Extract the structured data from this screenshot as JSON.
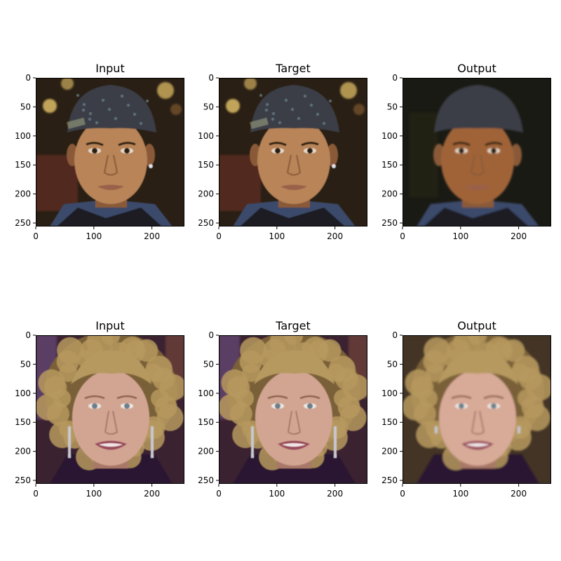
{
  "figure": {
    "rows": [
      {
        "panels": [
          {
            "title": "Input",
            "variant": "input"
          },
          {
            "title": "Target",
            "variant": "target"
          },
          {
            "title": "Output",
            "variant": "output"
          }
        ],
        "subject": "young-man-bandana",
        "palette": {
          "background": "#2a1f14",
          "bg_warm": "#6a4a2a",
          "bg_light_spot": "#e7c56a",
          "brick": "#5a2a1e",
          "skin": "#b88459",
          "skin_shadow": "#8a5a38",
          "bandana": "#3a3d46",
          "bandana_pattern": "#6a7f8a",
          "shirt": "#3b4a6a",
          "eye": "#2a1a10",
          "lip": "#9a6049",
          "output_skin": "#a06438",
          "output_bg": "#1a1a14"
        }
      },
      {
        "panels": [
          {
            "title": "Input",
            "variant": "input"
          },
          {
            "title": "Target",
            "variant": "target"
          },
          {
            "title": "Output",
            "variant": "output"
          }
        ],
        "subject": "older-woman-curly-hair",
        "palette": {
          "background": "#3b2230",
          "bg_side": "#6a4a7a",
          "hair": "#b6995e",
          "hair_dark": "#7a6038",
          "skin": "#d2a592",
          "skin_shadow": "#a97868",
          "eye": "#6a7f8a",
          "lip": "#9a4a5a",
          "earring": "#c8c8d0",
          "clothing": "#2a1830",
          "output_skin": "#d8aa98",
          "output_bg": "#3a3020"
        }
      }
    ],
    "axes": {
      "x_ticks": [
        "0",
        "100",
        "200"
      ],
      "y_ticks": [
        "0",
        "50",
        "100",
        "150",
        "200",
        "250"
      ],
      "x_tick_values": [
        0,
        100,
        200
      ],
      "y_tick_values": [
        0,
        50,
        100,
        150,
        200,
        250
      ],
      "range": [
        0,
        256
      ]
    }
  }
}
